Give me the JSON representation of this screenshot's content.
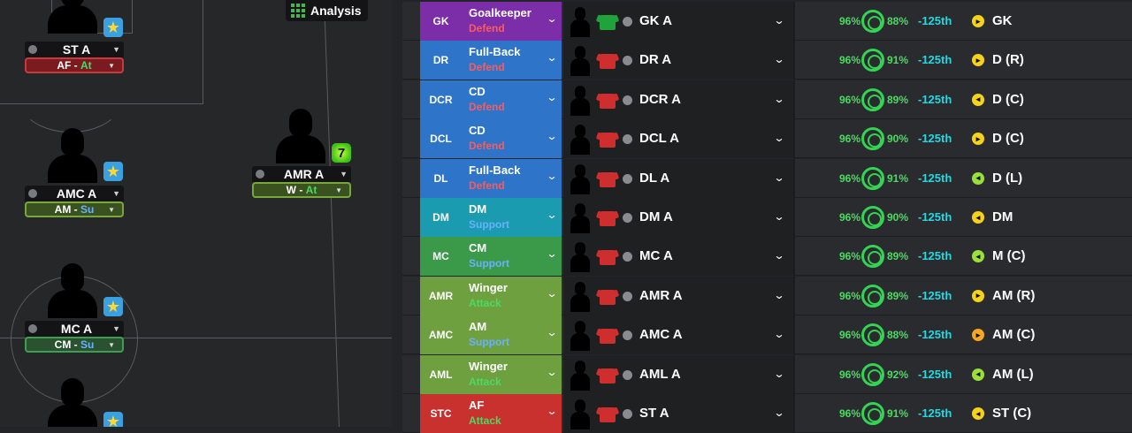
{
  "pitch": {
    "analysis_label": "Analysis",
    "players": [
      {
        "name": "ST A",
        "role": "AF",
        "duty": "At",
        "duty_color": "#4cd964",
        "role_bg": "#7a1b1f",
        "role_border": "#c73a3f",
        "badge": "star"
      },
      {
        "name": "AMC A",
        "role": "AM",
        "duty": "Su",
        "duty_color": "#6ab0ff",
        "role_bg": "#3a5220",
        "role_border": "#79a83a",
        "badge": "star"
      },
      {
        "name": "AMR A",
        "role": "W",
        "duty": "At",
        "duty_color": "#4cd964",
        "role_bg": "#3a5220",
        "role_border": "#79a83a",
        "badge": "7"
      },
      {
        "name": "MC A",
        "role": "CM",
        "duty": "Su",
        "duty_color": "#6ab0ff",
        "role_bg": "#2a5230",
        "role_border": "#3e9f52",
        "badge": "star"
      }
    ]
  },
  "table": {
    "rows": [
      {
        "pos": "GK",
        "role": "Goalkeeper",
        "duty": "Defend",
        "duty_color": "#ff5a5a",
        "color": "#7b2ea8",
        "name": "GK A",
        "shirt": "#1fa33b",
        "pct1": "96%",
        "pct2": "88%",
        "rank": "-125th",
        "fit": "GK",
        "arrow_color": "#f5d21c",
        "arrow": "▸"
      },
      {
        "pos": "DR",
        "role": "Full-Back",
        "duty": "Defend",
        "duty_color": "#ff5a5a",
        "color": "#2e74c8",
        "name": "DR A",
        "shirt": "#cf2e2e",
        "pct1": "96%",
        "pct2": "91%",
        "rank": "-125th",
        "fit": "D (R)",
        "arrow_color": "#f5d21c",
        "arrow": "▸"
      },
      {
        "pos": "DCR",
        "role": "CD",
        "duty": "Defend",
        "duty_color": "#ff5a5a",
        "color": "#2e74c8",
        "name": "DCR A",
        "shirt": "#cf2e2e",
        "pct1": "96%",
        "pct2": "89%",
        "rank": "-125th",
        "fit": "D (C)",
        "arrow_color": "#f5d21c",
        "arrow": "◂"
      },
      {
        "pos": "DCL",
        "role": "CD",
        "duty": "Defend",
        "duty_color": "#ff5a5a",
        "color": "#2e74c8",
        "name": "DCL A",
        "shirt": "#cf2e2e",
        "pct1": "96%",
        "pct2": "90%",
        "rank": "-125th",
        "fit": "D (C)",
        "arrow_color": "#f5d21c",
        "arrow": "▸"
      },
      {
        "pos": "DL",
        "role": "Full-Back",
        "duty": "Defend",
        "duty_color": "#ff5a5a",
        "color": "#2e74c8",
        "name": "DL A",
        "shirt": "#cf2e2e",
        "pct1": "96%",
        "pct2": "91%",
        "rank": "-125th",
        "fit": "D (L)",
        "arrow_color": "#9be03a",
        "arrow": "◂"
      },
      {
        "pos": "DM",
        "role": "DM",
        "duty": "Support",
        "duty_color": "#6ab0ff",
        "color": "#1a9bb0",
        "name": "DM A",
        "shirt": "#cf2e2e",
        "pct1": "96%",
        "pct2": "90%",
        "rank": "-125th",
        "fit": "DM",
        "arrow_color": "#f5d21c",
        "arrow": "◂"
      },
      {
        "pos": "MC",
        "role": "CM",
        "duty": "Support",
        "duty_color": "#6ab0ff",
        "color": "#3a9a4a",
        "name": "MC A",
        "shirt": "#cf2e2e",
        "pct1": "96%",
        "pct2": "89%",
        "rank": "-125th",
        "fit": "M (C)",
        "arrow_color": "#9be03a",
        "arrow": "◂"
      },
      {
        "pos": "AMR",
        "role": "Winger",
        "duty": "Attack",
        "duty_color": "#4cd964",
        "color": "#6fa040",
        "name": "AMR A",
        "shirt": "#cf2e2e",
        "pct1": "96%",
        "pct2": "89%",
        "rank": "-125th",
        "fit": "AM (R)",
        "arrow_color": "#f5d21c",
        "arrow": "▸"
      },
      {
        "pos": "AMC",
        "role": "AM",
        "duty": "Support",
        "duty_color": "#6ab0ff",
        "color": "#6fa040",
        "name": "AMC A",
        "shirt": "#cf2e2e",
        "pct1": "96%",
        "pct2": "88%",
        "rank": "-125th",
        "fit": "AM (C)",
        "arrow_color": "#f5a623",
        "arrow": "▸"
      },
      {
        "pos": "AML",
        "role": "Winger",
        "duty": "Attack",
        "duty_color": "#4cd964",
        "color": "#6fa040",
        "name": "AML A",
        "shirt": "#cf2e2e",
        "pct1": "96%",
        "pct2": "92%",
        "rank": "-125th",
        "fit": "AM (L)",
        "arrow_color": "#9be03a",
        "arrow": "◂"
      },
      {
        "pos": "STC",
        "role": "AF",
        "duty": "Attack",
        "duty_color": "#4cd964",
        "color": "#c9312f",
        "name": "ST A",
        "shirt": "#cf2e2e",
        "pct1": "96%",
        "pct2": "91%",
        "rank": "-125th",
        "fit": "ST (C)",
        "arrow_color": "#f5d21c",
        "arrow": "◂"
      }
    ]
  }
}
